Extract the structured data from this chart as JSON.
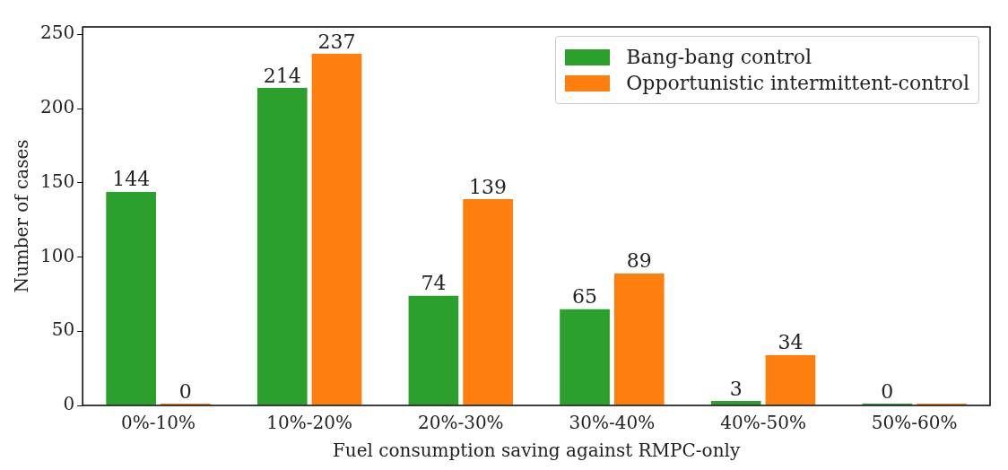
{
  "chart_data": {
    "type": "bar",
    "xlabel": "Fuel consumption saving against RMPC-only",
    "ylabel": "Number of cases",
    "categories": [
      "0%-10%",
      "10%-20%",
      "20%-30%",
      "30%-40%",
      "40%-50%",
      "50%-60%"
    ],
    "series": [
      {
        "name": "Bang-bang control",
        "color": "#2ca02c",
        "values": [
          144,
          214,
          74,
          65,
          3,
          0
        ],
        "value_labels": [
          "144",
          "214",
          "74",
          "65",
          "3",
          "0"
        ]
      },
      {
        "name": "Opportunistic intermittent-control",
        "color": "#ff7f0e",
        "values": [
          0,
          237,
          139,
          89,
          34,
          1
        ],
        "value_labels": [
          "0",
          "237",
          "139",
          "89",
          "34",
          null
        ]
      }
    ],
    "ylim": [
      0,
      255
    ],
    "yticks": [
      0,
      50,
      100,
      150,
      200,
      250
    ],
    "grid": false,
    "legend": "top right"
  }
}
